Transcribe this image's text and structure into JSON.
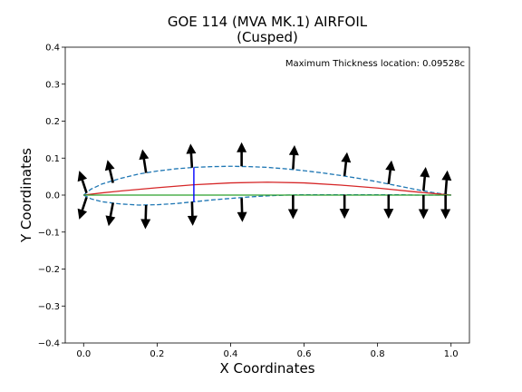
{
  "chart_data": {
    "type": "line",
    "title": "GOE 114 (MVA MK.1) AIRFOIL",
    "subtitle": "(Cusped)",
    "xlabel": "X Coordinates",
    "ylabel": "Y Coordinates",
    "xlim": [
      -0.05,
      1.05
    ],
    "ylim": [
      -0.4,
      0.4
    ],
    "xticks": [
      0.0,
      0.2,
      0.4,
      0.6,
      0.8,
      1.0
    ],
    "yticks": [
      -0.4,
      -0.3,
      -0.2,
      -0.1,
      0.0,
      0.1,
      0.2,
      0.3,
      0.4
    ],
    "xtick_labels": [
      "0.0",
      "0.2",
      "0.4",
      "0.6",
      "0.8",
      "1.0"
    ],
    "ytick_labels": [
      "−0.4",
      "−0.3",
      "−0.2",
      "−0.1",
      "0.0",
      "0.1",
      "0.2",
      "0.3",
      "0.4"
    ],
    "grid": false,
    "annotation": "Maximum Thickness location: 0.09528c",
    "series": [
      {
        "role": "upper-surface",
        "color": "#1f77b4",
        "style": "dashed",
        "x": [
          0.0,
          0.02,
          0.05,
          0.1,
          0.15,
          0.2,
          0.25,
          0.3,
          0.35,
          0.4,
          0.45,
          0.5,
          0.55,
          0.6,
          0.65,
          0.7,
          0.75,
          0.8,
          0.85,
          0.9,
          0.95,
          1.0
        ],
        "y": [
          0.0,
          0.016,
          0.03,
          0.045,
          0.057,
          0.065,
          0.071,
          0.075,
          0.077,
          0.078,
          0.077,
          0.075,
          0.071,
          0.066,
          0.06,
          0.053,
          0.045,
          0.036,
          0.026,
          0.016,
          0.007,
          0.0
        ]
      },
      {
        "role": "lower-surface",
        "color": "#1f77b4",
        "style": "dashed",
        "x": [
          0.0,
          0.02,
          0.05,
          0.1,
          0.15,
          0.2,
          0.25,
          0.3,
          0.35,
          0.4,
          0.45,
          0.5,
          0.55,
          0.6,
          0.65,
          0.7,
          0.75,
          0.8,
          0.85,
          0.9,
          0.95,
          1.0
        ],
        "y": [
          0.0,
          -0.01,
          -0.018,
          -0.024,
          -0.027,
          -0.026,
          -0.023,
          -0.018,
          -0.013,
          -0.009,
          -0.005,
          -0.002,
          0.0,
          0.001,
          0.001,
          0.001,
          0.001,
          0.001,
          0.001,
          0.0,
          0.0,
          0.0
        ]
      },
      {
        "role": "camber-line",
        "color": "#d62728",
        "style": "solid",
        "x": [
          0.0,
          0.05,
          0.1,
          0.2,
          0.3,
          0.4,
          0.5,
          0.6,
          0.7,
          0.8,
          0.9,
          1.0
        ],
        "y": [
          0.0,
          0.006,
          0.011,
          0.02,
          0.028,
          0.033,
          0.035,
          0.033,
          0.027,
          0.019,
          0.009,
          0.0
        ]
      },
      {
        "role": "chord-line",
        "color": "#2ca02c",
        "style": "solid",
        "x": [
          0.0,
          1.0
        ],
        "y": [
          0.0,
          0.0
        ]
      }
    ],
    "thickness_line": {
      "color": "#0000ff",
      "x": 0.3,
      "y": [
        -0.018,
        0.075
      ]
    },
    "normal_vectors": {
      "color": "#000000",
      "upper": [
        {
          "x": 0.008,
          "y": 0.006,
          "dx": -0.02,
          "dy": 0.06
        },
        {
          "x": 0.08,
          "y": 0.033,
          "dx": -0.015,
          "dy": 0.062
        },
        {
          "x": 0.17,
          "y": 0.06,
          "dx": -0.01,
          "dy": 0.064
        },
        {
          "x": 0.295,
          "y": 0.074,
          "dx": -0.004,
          "dy": 0.065
        },
        {
          "x": 0.43,
          "y": 0.078,
          "dx": 0.0,
          "dy": 0.065
        },
        {
          "x": 0.57,
          "y": 0.07,
          "dx": 0.004,
          "dy": 0.065
        },
        {
          "x": 0.71,
          "y": 0.052,
          "dx": 0.007,
          "dy": 0.064
        },
        {
          "x": 0.83,
          "y": 0.03,
          "dx": 0.008,
          "dy": 0.064
        },
        {
          "x": 0.925,
          "y": 0.012,
          "dx": 0.006,
          "dy": 0.064
        },
        {
          "x": 0.985,
          "y": 0.003,
          "dx": 0.005,
          "dy": 0.064
        }
      ],
      "lower": [
        {
          "x": 0.008,
          "y": -0.006,
          "dx": -0.02,
          "dy": -0.06
        },
        {
          "x": 0.08,
          "y": -0.021,
          "dx": -0.012,
          "dy": -0.063
        },
        {
          "x": 0.17,
          "y": -0.027,
          "dx": -0.002,
          "dy": -0.065
        },
        {
          "x": 0.295,
          "y": -0.018,
          "dx": 0.002,
          "dy": -0.065
        },
        {
          "x": 0.43,
          "y": -0.008,
          "dx": 0.002,
          "dy": -0.065
        },
        {
          "x": 0.57,
          "y": 0.0,
          "dx": 0.0,
          "dy": -0.065
        },
        {
          "x": 0.71,
          "y": 0.001,
          "dx": 0.0,
          "dy": -0.065
        },
        {
          "x": 0.83,
          "y": 0.001,
          "dx": 0.0,
          "dy": -0.065
        },
        {
          "x": 0.925,
          "y": 0.0,
          "dx": 0.0,
          "dy": -0.065
        },
        {
          "x": 0.985,
          "y": 0.0,
          "dx": 0.0,
          "dy": -0.065
        }
      ]
    }
  }
}
